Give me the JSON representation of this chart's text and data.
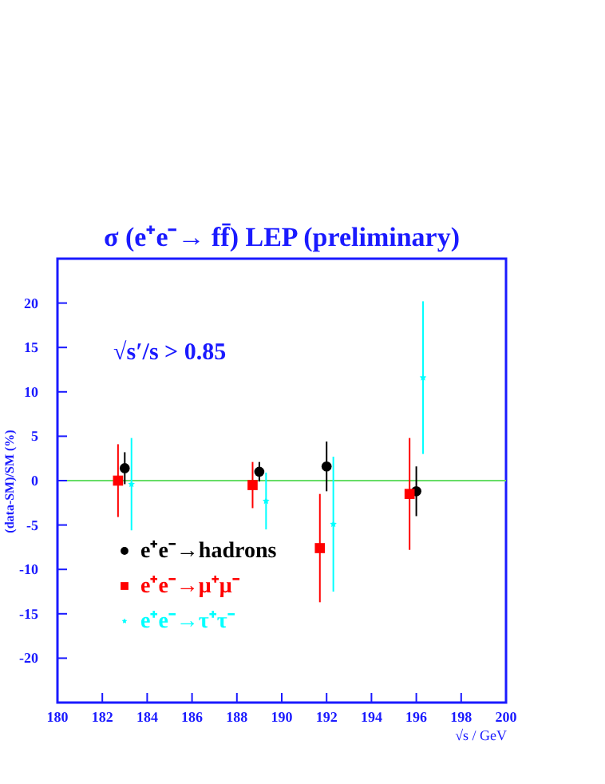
{
  "chart_data": {
    "type": "scatter",
    "title": "σ (e⁺e⁻→ ff̄)  LEP (preliminary)",
    "xlabel": "√s / GeV",
    "ylabel": "(data-SM)/SM (%)",
    "annotations": [
      "√s′/s > 0.85"
    ],
    "xlim": [
      180,
      200
    ],
    "xticks": [
      180,
      182,
      184,
      186,
      188,
      190,
      192,
      194,
      196,
      198,
      200
    ],
    "ylim": [
      -25,
      25
    ],
    "yticks": [
      -20,
      -15,
      -10,
      -5,
      0,
      5,
      10,
      15,
      20
    ],
    "grid": false,
    "legend": "bottom left",
    "ref_lines": [
      {
        "axis": "y",
        "value": 0,
        "color": "#66dd66"
      }
    ],
    "series": [
      {
        "name": "e⁺e⁻→hadrons",
        "color": "#000000",
        "marker": "circle",
        "x": [
          183.0,
          189.0,
          192.0,
          196.0
        ],
        "values": [
          1.4,
          1.0,
          1.6,
          -1.2
        ],
        "errors": [
          1.8,
          1.1,
          2.8,
          2.8
        ]
      },
      {
        "name": "e⁺e⁻→μ⁺μ⁻",
        "color": "#ff0000",
        "marker": "square",
        "x": [
          182.7,
          188.7,
          191.7,
          195.7
        ],
        "values": [
          0.0,
          -0.5,
          -7.6,
          -1.5
        ],
        "errors": [
          4.1,
          2.6,
          6.1,
          6.3
        ]
      },
      {
        "name": "e⁺e⁻→τ⁺τ⁻",
        "color": "#00ffff",
        "marker": "star",
        "x": [
          183.3,
          189.3,
          192.3,
          196.3
        ],
        "values": [
          -0.4,
          -2.3,
          -4.9,
          11.6
        ],
        "errors": [
          5.2,
          3.2,
          7.6,
          8.6
        ]
      }
    ]
  }
}
